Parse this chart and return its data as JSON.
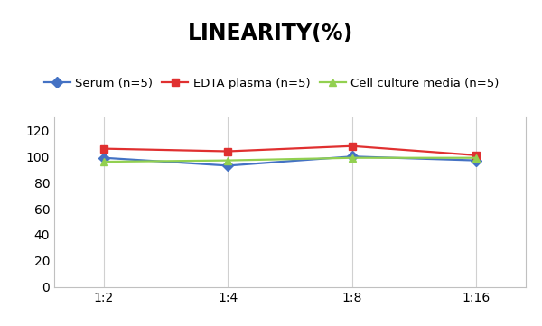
{
  "title": "LINEARITY(%)",
  "x_labels": [
    "1:2",
    "1:4",
    "1:8",
    "1:16"
  ],
  "x_positions": [
    0,
    1,
    2,
    3
  ],
  "series": [
    {
      "label": "Serum (n=5)",
      "values": [
        99,
        93,
        100,
        97
      ],
      "color": "#4472C4",
      "marker": "D",
      "marker_size": 6,
      "linewidth": 1.6
    },
    {
      "label": "EDTA plasma (n=5)",
      "values": [
        106,
        104,
        108,
        101
      ],
      "color": "#E03030",
      "marker": "s",
      "marker_size": 6,
      "linewidth": 1.6
    },
    {
      "label": "Cell culture media (n=5)",
      "values": [
        96,
        97,
        99,
        99
      ],
      "color": "#92D050",
      "marker": "^",
      "marker_size": 6,
      "linewidth": 1.6
    }
  ],
  "ylim": [
    0,
    130
  ],
  "yticks": [
    0,
    20,
    40,
    60,
    80,
    100,
    120
  ],
  "background_color": "#FFFFFF",
  "title_fontsize": 17,
  "legend_fontsize": 9.5,
  "tick_fontsize": 10,
  "grid_color": "#D0D0D0",
  "spine_color": "#C0C0C0"
}
